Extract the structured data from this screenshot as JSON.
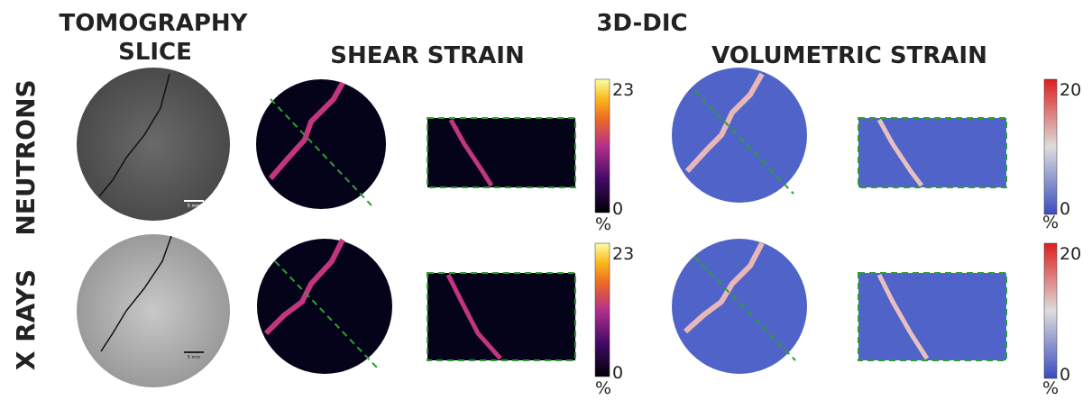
{
  "headers": {
    "tomography": [
      "TOMOGRAPHY",
      "SLICE"
    ],
    "dic": "3D-DIC",
    "shear": "SHEAR STRAIN",
    "volumetric": "VOLUMETRIC STRAIN"
  },
  "rows": [
    {
      "label": "NEUTRONS",
      "scale_bar": "5 mm",
      "shear_colorbar": {
        "max": "23",
        "min": "0",
        "unit": "%"
      },
      "volumetric_colorbar": {
        "max": "20",
        "min": "0",
        "unit": "%"
      }
    },
    {
      "label": "X RAYS",
      "scale_bar": "5 mm",
      "shear_colorbar": {
        "max": "23",
        "min": "0",
        "unit": "%"
      },
      "volumetric_colorbar": {
        "max": "20",
        "min": "0",
        "unit": "%"
      }
    }
  ]
}
